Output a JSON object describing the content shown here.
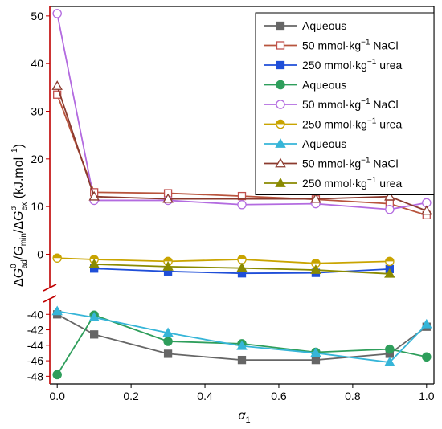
{
  "chart_data": {
    "type": "line",
    "xlabel": "α1",
    "ylabel": "ΔG0ad/Gmin/ΔGσex (kJ.mol−1)",
    "xlim": [
      -0.02,
      1.02
    ],
    "x_ticks": [
      "0.0",
      "0.2",
      "0.4",
      "0.6",
      "0.8",
      "1.0"
    ],
    "y_axis_break": true,
    "y_upper": {
      "range": [
        -7,
        52
      ],
      "ticks": [
        "0",
        "10",
        "20",
        "30",
        "40",
        "50"
      ]
    },
    "y_lower": {
      "range": [
        -49,
        -38
      ],
      "ticks": [
        "-40",
        "-42",
        "-44",
        "-46",
        "-48"
      ]
    },
    "grid": false,
    "legend_position": "top-right",
    "series": [
      {
        "name": "Aqueous",
        "color": "#666666",
        "marker": "square",
        "filled": true,
        "line_color": "#666666",
        "panel": "lower",
        "x": [
          0.0,
          0.1,
          0.3,
          0.5,
          0.7,
          0.9,
          1.0
        ],
        "y": [
          -40.0,
          -42.6,
          -45.1,
          -45.9,
          -45.9,
          -45.1,
          -41.6
        ]
      },
      {
        "name": "50 mmol·kg−1 NaCl",
        "color": "#c0504d",
        "marker": "square",
        "filled": false,
        "line_color": "#b8543d",
        "panel": "upper",
        "x": [
          0.0,
          0.1,
          0.3,
          0.5,
          0.7,
          0.9,
          1.0
        ],
        "y": [
          33.5,
          13.0,
          12.8,
          12.2,
          11.5,
          10.6,
          8.2
        ]
      },
      {
        "name": "250 mmol·kg−1 urea",
        "color": "#1f4ed8",
        "marker": "square",
        "filled": true,
        "line_color": "#1f4ed8",
        "panel": "upper",
        "x": [
          0.1,
          0.3,
          0.5,
          0.7,
          0.9
        ],
        "y": [
          -3.0,
          -3.6,
          -4.0,
          -3.9,
          -3.1
        ]
      },
      {
        "name": "Aqueous",
        "color": "#2e9e5b",
        "marker": "circle",
        "filled": true,
        "line_color": "#2e9e5b",
        "panel": "lower",
        "x": [
          0.0,
          0.1,
          0.3,
          0.5,
          0.7,
          0.9,
          1.0
        ],
        "y": [
          -47.8,
          -40.1,
          -43.5,
          -43.8,
          -44.9,
          -44.5,
          -45.5
        ]
      },
      {
        "name": "50 mmol·kg−1 NaCl",
        "color": "#b36be0",
        "marker": "circle",
        "filled": false,
        "line_color": "#b36be0",
        "panel": "upper",
        "x": [
          0.0,
          0.1,
          0.3,
          0.5,
          0.7,
          0.9,
          1.0
        ],
        "y": [
          50.5,
          11.3,
          11.3,
          10.4,
          10.6,
          9.4,
          10.8
        ]
      },
      {
        "name": "250 mmol·kg−1 urea",
        "color": "#c9a400",
        "marker": "half-circle",
        "filled": false,
        "line_color": "#c9a400",
        "panel": "upper",
        "x": [
          0.0,
          0.1,
          0.3,
          0.5,
          0.7,
          0.9
        ],
        "y": [
          -0.8,
          -1.1,
          -1.5,
          -1.1,
          -1.9,
          -1.5
        ]
      },
      {
        "name": "Aqueous",
        "color": "#36b5d8",
        "marker": "triangle",
        "filled": true,
        "line_color": "#36b5d8",
        "panel": "lower",
        "x": [
          0.0,
          0.1,
          0.3,
          0.5,
          0.7,
          0.9,
          1.0
        ],
        "y": [
          -39.6,
          -40.4,
          -42.4,
          -44.1,
          -45.0,
          -46.2,
          -41.3
        ]
      },
      {
        "name": "50 mmol·kg−1 NaCl",
        "color": "#8b3a2e",
        "marker": "triangle",
        "filled": false,
        "line_color": "#8b3a2e",
        "panel": "upper",
        "x": [
          0.0,
          0.1,
          0.3,
          0.7,
          0.9,
          1.0
        ],
        "y": [
          35.3,
          12.1,
          11.6,
          11.6,
          12.1,
          9.1
        ]
      },
      {
        "name": "250 mmol·kg−1 urea",
        "color": "#8a8a00",
        "marker": "triangle",
        "filled": true,
        "line_color": "#8a8a00",
        "panel": "upper",
        "x": [
          0.1,
          0.3,
          0.5,
          0.7,
          0.9
        ],
        "y": [
          -2.1,
          -2.6,
          -2.9,
          -3.3,
          -4.1
        ]
      }
    ]
  }
}
